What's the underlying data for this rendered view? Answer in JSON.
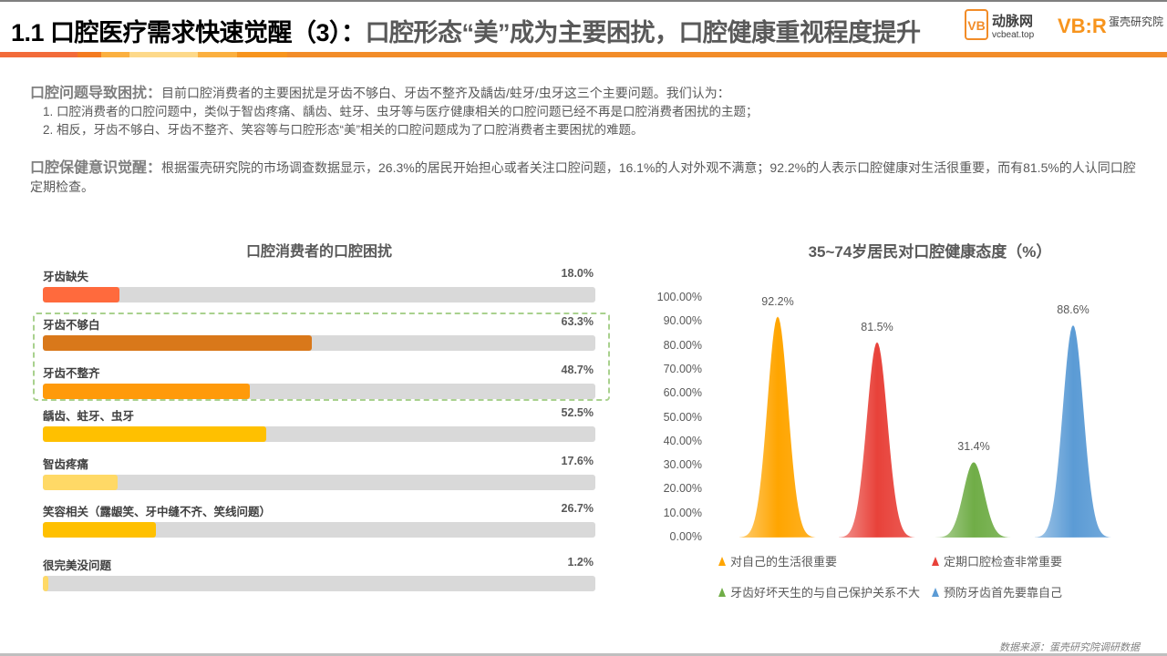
{
  "header": {
    "title_main": "1.1 口腔医疗需求快速觉醒（3）：",
    "title_sub": "口腔形态“美”成为主要困扰，口腔健康重视程度提升",
    "logo1_text": "动脉网",
    "logo1_url": "vcbeat.top",
    "logo2_text": "蛋壳研究院"
  },
  "intro": {
    "p1_heading": "口腔问题导致困扰：",
    "p1_text": "目前口腔消费者的主要困扰是牙齿不够白、牙齿不整齐及龋齿/蛀牙/虫牙这三个主要问题。我们认为：",
    "items": [
      "1. 口腔消费者的口腔问题中，类似于智齿疼痛、龋齿、蛀牙、虫牙等与医疗健康相关的口腔问题已经不再是口腔消费者困扰的主题；",
      "2. 相反，牙齿不够白、牙齿不整齐、笑容等与口腔形态“美”相关的口腔问题成为了口腔消费者主要困扰的难题。"
    ],
    "p2_heading": "口腔保健意识觉醒：",
    "p2_text": "根据蛋壳研究院的市场调查数据显示，26.3%的居民开始担心或者关注口腔问题，16.1%的人对外观不满意；92.2%的人表示口腔健康对生活很重要，而有81.5%的人认同口腔定期检查。"
  },
  "chart_data": [
    {
      "type": "bar",
      "title": "口腔消费者的口腔困扰",
      "categories": [
        "牙齿缺失",
        "牙齿不够白",
        "牙齿不整齐",
        "龋齿、蛀牙、虫牙",
        "智齿疼痛",
        "笑容相关（露龈笑、牙中缝不齐、笑线问题）",
        "很完美没问题"
      ],
      "values": [
        18.0,
        63.3,
        48.7,
        52.5,
        17.6,
        26.7,
        1.2
      ],
      "labels": [
        "18.0%",
        "63.3%",
        "48.7%",
        "52.5%",
        "17.6%",
        "26.7%",
        "1.2%"
      ],
      "colors": [
        "#ff6a3d",
        "#d9781a",
        "#ff9a0a",
        "#ffc000",
        "#ffd966",
        "#ffc000",
        "#ffd966"
      ],
      "highlighted": [
        "牙齿不够白",
        "牙齿不整齐"
      ],
      "xlim": [
        0,
        130
      ]
    },
    {
      "type": "area",
      "title": "35~74岁居民对口腔健康态度（%）",
      "yticks": [
        "100.00%",
        "90.00%",
        "80.00%",
        "70.00%",
        "60.00%",
        "50.00%",
        "40.00%",
        "30.00%",
        "20.00%",
        "10.00%",
        "0.00%"
      ],
      "ylim": [
        0,
        100
      ],
      "series": [
        {
          "name": "对自己的生活很重要",
          "value": 92.2,
          "label": "92.2%",
          "color": "#ffa500"
        },
        {
          "name": "定期口腔检查非常重要",
          "value": 81.5,
          "label": "81.5%",
          "color": "#e8423a"
        },
        {
          "name": "牙齿好坏天生的与自己保护关系不大",
          "value": 31.4,
          "label": "31.4%",
          "color": "#70ad47"
        },
        {
          "name": "预防牙齿首先要靠自己",
          "value": 88.6,
          "label": "88.6%",
          "color": "#5b9bd5"
        }
      ],
      "legend": "bottom"
    }
  ],
  "source": "数据来源：蛋壳研究院调研数据"
}
